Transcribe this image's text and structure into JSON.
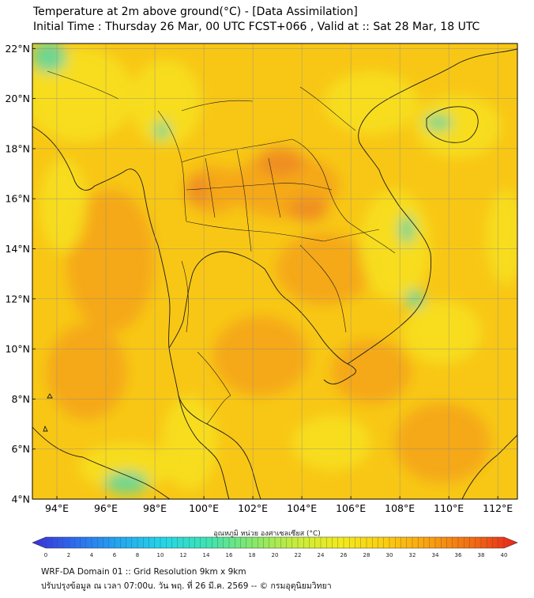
{
  "title": {
    "line1": "Temperature at 2m above ground(°C) - [Data Assimilation]",
    "line2": "Initial Time : Thursday 26 Mar, 00 UTC FCST+066 , Valid at :: Sat 28 Mar, 18 UTC"
  },
  "axes": {
    "lat_labels": [
      "22°N",
      "20°N",
      "18°N",
      "16°N",
      "14°N",
      "12°N",
      "10°N",
      "8°N",
      "6°N",
      "4°N"
    ],
    "lat_values": [
      22,
      20,
      18,
      16,
      14,
      12,
      10,
      8,
      6,
      4
    ],
    "lon_labels": [
      "94°E",
      "96°E",
      "98°E",
      "100°E",
      "102°E",
      "104°E",
      "106°E",
      "108°E",
      "110°E",
      "112°E"
    ],
    "lon_values": [
      94,
      96,
      98,
      100,
      102,
      104,
      106,
      108,
      110,
      112
    ],
    "lat_range": [
      4,
      22.2
    ],
    "lon_range": [
      93,
      112.8
    ],
    "grid": true
  },
  "colorbar": {
    "title": "อุณหภูมิ หน่วย องศาเซลเซียส (°C)",
    "tick_labels": [
      "0",
      "2",
      "4",
      "6",
      "8",
      "10",
      "12",
      "14",
      "16",
      "18",
      "20",
      "22",
      "24",
      "26",
      "28",
      "30",
      "32",
      "34",
      "36",
      "38",
      "40"
    ],
    "min": 0,
    "max": 40,
    "colors": [
      "#3a2fd8",
      "#2b6ff0",
      "#22a9f0",
      "#25d6e6",
      "#3fe3b0",
      "#86e86a",
      "#c8ec3a",
      "#f2ea1c",
      "#fbcd10",
      "#f9a010",
      "#f26a12",
      "#e8241b"
    ]
  },
  "field_colors": {
    "base": "#f8c716",
    "warm": "#f5a21a",
    "hot": "#ee8c20",
    "cool": "#f7e11c",
    "cooler": "#d9ea2e",
    "coolest": "#5fd6a0"
  },
  "footer": {
    "line1": "WRF-DA Domain 01 :: Grid Resolution 9km x 9km",
    "line2": "ปรับปรุงข้อมูล ณ เวลา 07:00u. วัน พฤ. ที่ 26 มี.ค. 2569 -- © กรมอุตุนิยมวิทยา"
  }
}
